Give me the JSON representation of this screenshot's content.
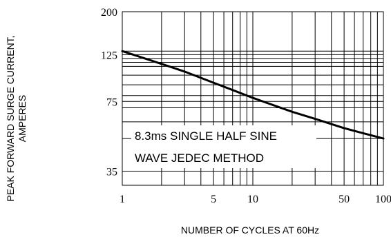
{
  "chart_data": {
    "type": "line",
    "title": "",
    "xlabel": "NUMBER OF CYCLES AT 60Hz",
    "ylabel_lines": [
      "PEAK FORWARD SURGE CURRENT,",
      "AMPERES"
    ],
    "x_scale": "log",
    "y_scale": "log",
    "xlim": [
      1,
      100
    ],
    "ylim": [
      30,
      200
    ],
    "x_ticks": [
      1,
      5,
      10,
      50,
      100
    ],
    "x_tick_labels": [
      "1",
      "5",
      "10",
      "50",
      "100"
    ],
    "y_ticks": [
      35,
      75,
      125,
      200
    ],
    "y_tick_labels": [
      "35",
      "75",
      "125",
      "200"
    ],
    "x_minor_grid": [
      2,
      3,
      4,
      5,
      6,
      7,
      8,
      9,
      10,
      20,
      30,
      40,
      50,
      60,
      70,
      80,
      90
    ],
    "y_grid": [
      35,
      50,
      60,
      70,
      75,
      80,
      90,
      100,
      110,
      115,
      120,
      125,
      130
    ],
    "grid": true,
    "annotation_lines": [
      "8.3ms SINGLE HALF SINE",
      "WAVE JEDEC METHOD"
    ],
    "series": [
      {
        "x": [
          1,
          2,
          3,
          5,
          7,
          10,
          20,
          30,
          50,
          70,
          100
        ],
        "y": [
          130,
          113,
          104,
          92,
          85,
          78,
          67,
          62,
          56,
          53,
          50
        ]
      }
    ]
  }
}
